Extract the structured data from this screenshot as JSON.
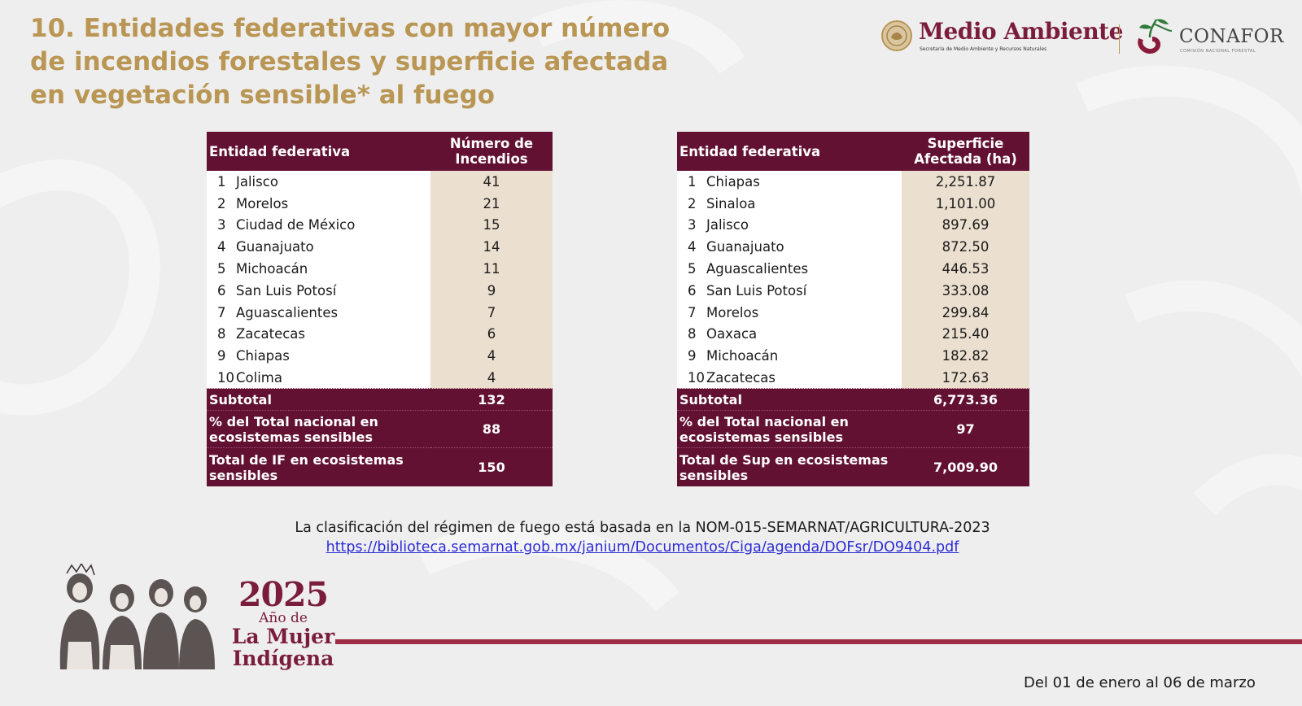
{
  "title": {
    "line1": "10. Entidades federativas con mayor número",
    "line2": "de incendios forestales y superficie afectada",
    "line3": "en vegetación sensible* al fuego"
  },
  "logos": {
    "semarnat_name": "Medio Ambiente",
    "semarnat_sub": "Secretaría de Medio Ambiente y Recursos Naturales",
    "conafor_name": "CONAFOR",
    "conafor_sub": "COMISIÓN NACIONAL FORESTAL"
  },
  "table_fires": {
    "headers": {
      "name": "Entidad federativa",
      "value_line1": "Número de",
      "value_line2": "Incendios"
    },
    "rows": [
      {
        "rank": "1",
        "name": "Jalisco",
        "value": "41"
      },
      {
        "rank": "2",
        "name": "Morelos",
        "value": "21"
      },
      {
        "rank": "3",
        "name": "Ciudad de México",
        "value": "15"
      },
      {
        "rank": "4",
        "name": "Guanajuato",
        "value": "14"
      },
      {
        "rank": "5",
        "name": "Michoacán",
        "value": "11"
      },
      {
        "rank": "6",
        "name": "San Luis Potosí",
        "value": "9"
      },
      {
        "rank": "7",
        "name": "Aguascalientes",
        "value": "7"
      },
      {
        "rank": "8",
        "name": "Zacatecas",
        "value": "6"
      },
      {
        "rank": "9",
        "name": "Chiapas",
        "value": "4"
      },
      {
        "rank": "10",
        "name": "Colima",
        "value": "4"
      }
    ],
    "subtotal": {
      "label": "Subtotal",
      "value": "132"
    },
    "pct": {
      "label_line1": "% del Total nacional en",
      "label_line2": "ecosistemas sensibles",
      "value": "88"
    },
    "total": {
      "label_line1": "Total de IF en ecosistemas",
      "label_line2": "sensibles",
      "value": "150"
    }
  },
  "table_area": {
    "headers": {
      "name": "Entidad federativa",
      "value_line1": "Superficie",
      "value_line2": "Afectada (ha)"
    },
    "rows": [
      {
        "rank": "1",
        "name": "Chiapas",
        "value": "2,251.87"
      },
      {
        "rank": "2",
        "name": "Sinaloa",
        "value": "1,101.00"
      },
      {
        "rank": "3",
        "name": "Jalisco",
        "value": "897.69"
      },
      {
        "rank": "4",
        "name": "Guanajuato",
        "value": "872.50"
      },
      {
        "rank": "5",
        "name": "Aguascalientes",
        "value": "446.53"
      },
      {
        "rank": "6",
        "name": "San Luis Potosí",
        "value": "333.08"
      },
      {
        "rank": "7",
        "name": "Morelos",
        "value": "299.84"
      },
      {
        "rank": "8",
        "name": "Oaxaca",
        "value": "215.40"
      },
      {
        "rank": "9",
        "name": "Michoacán",
        "value": "182.82"
      },
      {
        "rank": "10",
        "name": "Zacatecas",
        "value": "172.63"
      }
    ],
    "subtotal": {
      "label": "Subtotal",
      "value": "6,773.36"
    },
    "pct": {
      "label_line1": "% del Total nacional en",
      "label_line2": "ecosistemas sensibles",
      "value": "97"
    },
    "total": {
      "label_line1": "Total de Sup en ecosistemas",
      "label_line2": "sensibles",
      "value": "7,009.90"
    }
  },
  "note": {
    "text": "La clasificación del régimen de fuego está basada en la NOM-015-SEMARNAT/AGRICULTURA-2023",
    "link": "https://biblioteca.semarnat.gob.mx/janium/Documentos/Ciga/agenda/DOFsr/DO9404.pdf"
  },
  "footer": {
    "year": "2025",
    "line1": "Año de",
    "line2": "La Mujer",
    "line3": "Indígena",
    "date_range": "Del 01 de enero al 06 de marzo"
  },
  "colors": {
    "title": "#b99653",
    "header_bg": "#621132",
    "value_cell_bg": "#ebdfcf",
    "footer_line": "#9c2d47",
    "link": "#2c2cd6"
  }
}
